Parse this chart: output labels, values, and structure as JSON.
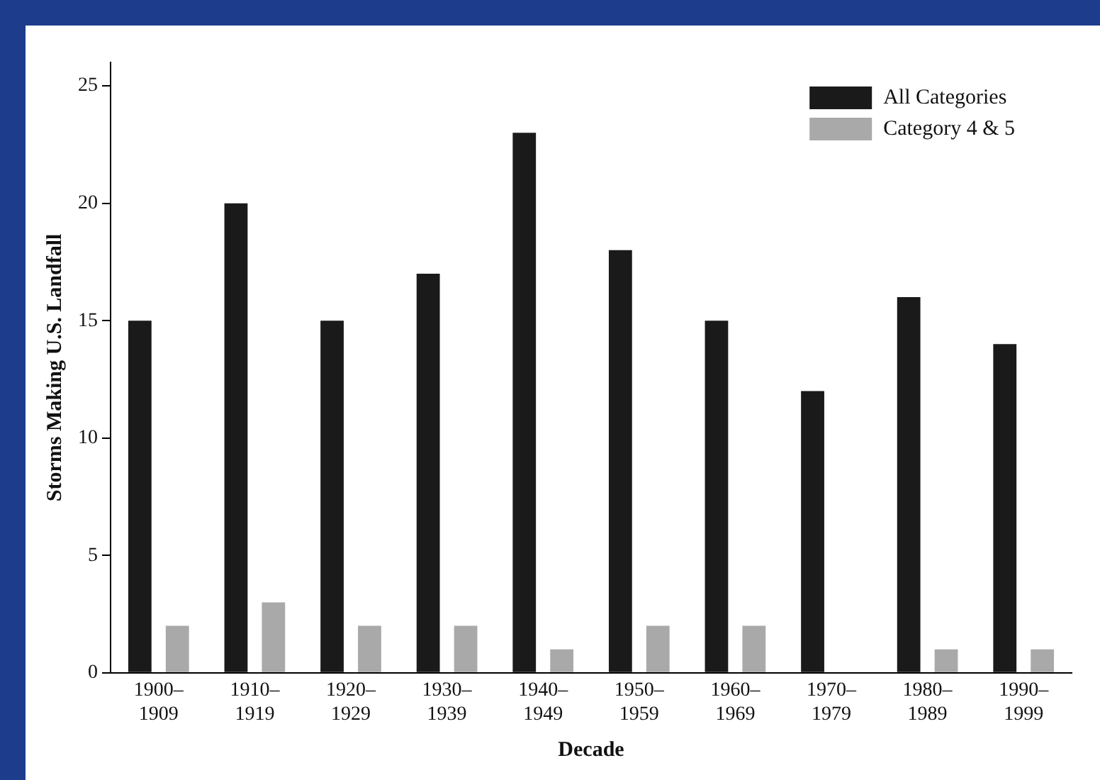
{
  "chart_data": {
    "type": "bar",
    "xlabel": "Decade",
    "ylabel": "Storms Making U.S. Landfall",
    "categories": [
      "1900–\n1909",
      "1910–\n1919",
      "1920–\n1929",
      "1930–\n1939",
      "1940–\n1949",
      "1950–\n1959",
      "1960–\n1969",
      "1970–\n1979",
      "1980–\n1989",
      "1990–\n1999"
    ],
    "series": [
      {
        "name": "All Categories",
        "color": "#1a1a1a",
        "values": [
          15,
          20,
          15,
          17,
          23,
          18,
          15,
          12,
          16,
          14
        ]
      },
      {
        "name": "Category 4 & 5",
        "color": "#a9a9a9",
        "values": [
          2,
          3,
          2,
          2,
          1,
          2,
          2,
          0,
          1,
          1
        ]
      }
    ],
    "ylim": [
      0,
      26
    ],
    "yticks": [
      0,
      5,
      10,
      15,
      20,
      25
    ],
    "grid": false,
    "legend": "top right"
  }
}
